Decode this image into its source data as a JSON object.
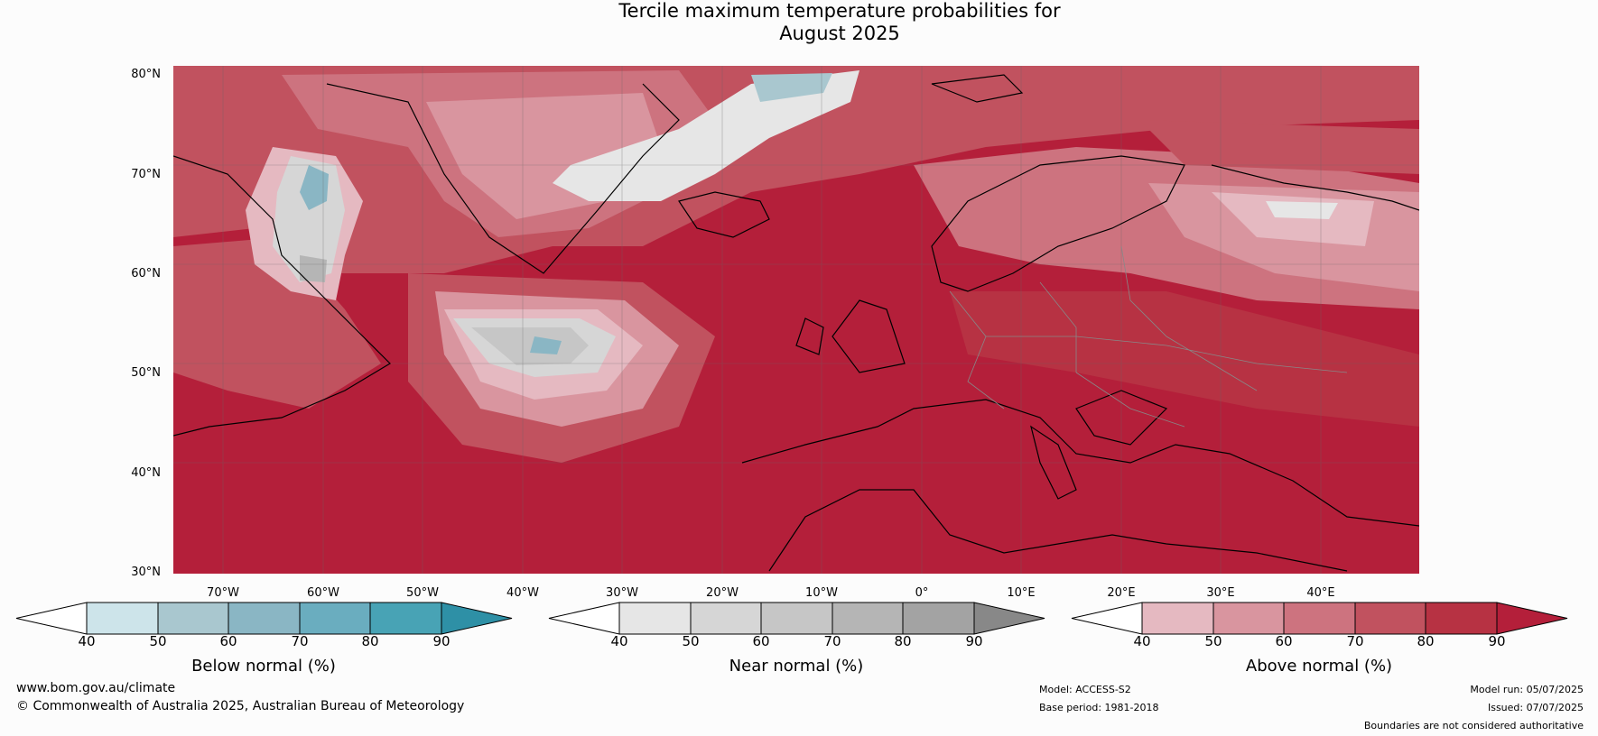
{
  "title": "Tercile maximum temperature probabilities for",
  "subtitle": "August 2025",
  "lat_labels": [
    "80°N",
    "70°N",
    "60°N",
    "50°N",
    "40°N",
    "30°N"
  ],
  "lon_labels": [
    "70°W",
    "60°W",
    "50°W",
    "40°W",
    "30°W",
    "20°W",
    "10°W",
    "0°",
    "10°E",
    "20°E",
    "30°E",
    "40°E"
  ],
  "legends": [
    {
      "label": "Below normal (%)",
      "ticks": [
        "40",
        "50",
        "60",
        "70",
        "80",
        "90"
      ],
      "colors": [
        "#ffffff",
        "#cde4ea",
        "#a9c7cf",
        "#8ab6c4",
        "#6aadbf",
        "#48a3b5",
        "#2e90a6"
      ]
    },
    {
      "label": "Near normal (%)",
      "ticks": [
        "40",
        "50",
        "60",
        "70",
        "80",
        "90"
      ],
      "colors": [
        "#ffffff",
        "#e6e6e6",
        "#d6d6d6",
        "#c6c6c6",
        "#b5b5b5",
        "#a3a3a3",
        "#888888"
      ]
    },
    {
      "label": "Above normal (%)",
      "ticks": [
        "40",
        "50",
        "60",
        "70",
        "80",
        "90"
      ],
      "colors": [
        "#ffffff",
        "#e5b9c1",
        "#d9959f",
        "#cd737f",
        "#c1525f",
        "#b73243",
        "#b41f3a"
      ]
    }
  ],
  "footer": {
    "website": "www.bom.gov.au/climate",
    "copyright": "© Commonwealth of Australia 2025, Australian Bureau of Meteorology",
    "model": "Model: ACCESS-S2",
    "base_period": "Base period: 1981-2018",
    "model_run": "Model run: 05/07/2025",
    "issued": "Issued: 07/07/2025",
    "disclaimer": "Boundaries are not considered authoritative"
  }
}
